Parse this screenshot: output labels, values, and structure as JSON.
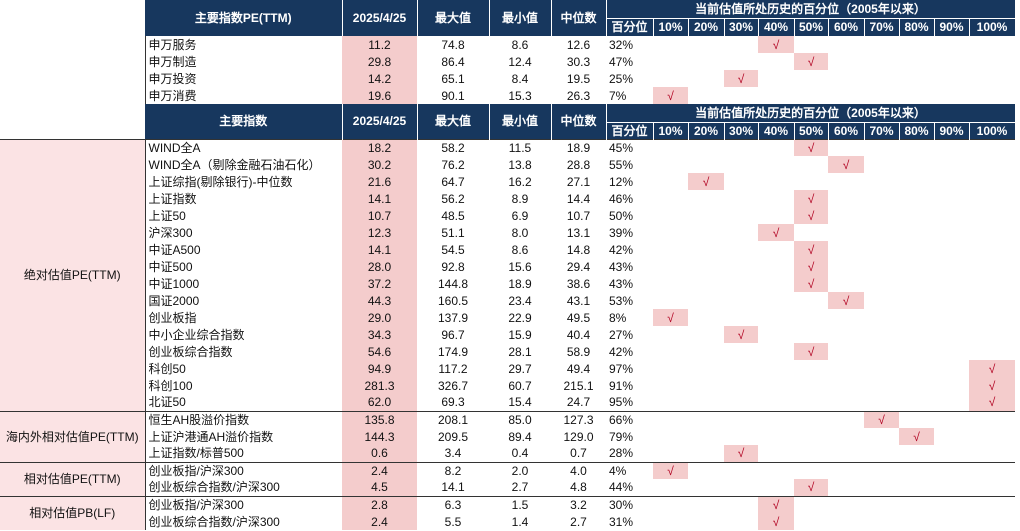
{
  "table1": {
    "header": {
      "title": "主要指数PE(TTM)",
      "date": "2025/4/25",
      "max": "最大值",
      "min": "最小值",
      "median": "中位数",
      "history_title": "当前估值所处历史的百分位（2005年以来）",
      "pct_label": "百分位",
      "bins": [
        "10%",
        "20%",
        "30%",
        "40%",
        "50%",
        "60%",
        "70%",
        "80%",
        "90%",
        "100%"
      ]
    },
    "rows": [
      {
        "name": "申万服务",
        "cur": "11.2",
        "max": "74.8",
        "min": "8.6",
        "median": "12.6",
        "pct": "32%",
        "bin": 3
      },
      {
        "name": "申万制造",
        "cur": "29.8",
        "max": "86.4",
        "min": "12.4",
        "median": "30.3",
        "pct": "47%",
        "bin": 4
      },
      {
        "name": "申万投资",
        "cur": "14.2",
        "max": "65.1",
        "min": "8.4",
        "median": "19.5",
        "pct": "25%",
        "bin": 2
      },
      {
        "name": "申万消费",
        "cur": "19.6",
        "max": "90.1",
        "min": "15.3",
        "median": "26.3",
        "pct": "7%",
        "bin": 0
      }
    ]
  },
  "table2": {
    "header": {
      "title": "主要指数",
      "date": "2025/4/25",
      "max": "最大值",
      "min": "最小值",
      "median": "中位数",
      "history_title": "当前估值所处历史的百分位（2005年以来）",
      "pct_label": "百分位",
      "bins": [
        "10%",
        "20%",
        "30%",
        "40%",
        "50%",
        "60%",
        "70%",
        "80%",
        "90%",
        "100%"
      ]
    },
    "check": "√",
    "groups": [
      {
        "label": "绝对估值PE(TTM)",
        "rows": [
          {
            "name": "WIND全A",
            "cur": "18.2",
            "max": "58.2",
            "min": "11.5",
            "median": "18.9",
            "pct": "45%",
            "bin": 4
          },
          {
            "name": "WIND全A（剔除金融石油石化）",
            "cur": "30.2",
            "max": "76.2",
            "min": "13.8",
            "median": "28.8",
            "pct": "55%",
            "bin": 5
          },
          {
            "name": "上证综指(剔除银行)-中位数",
            "cur": "21.6",
            "max": "64.7",
            "min": "16.2",
            "median": "27.1",
            "pct": "12%",
            "bin": 1
          },
          {
            "name": "上证指数",
            "cur": "14.1",
            "max": "56.2",
            "min": "8.9",
            "median": "14.4",
            "pct": "46%",
            "bin": 4
          },
          {
            "name": "上证50",
            "cur": "10.7",
            "max": "48.5",
            "min": "6.9",
            "median": "10.7",
            "pct": "50%",
            "bin": 4
          },
          {
            "name": "沪深300",
            "cur": "12.3",
            "max": "51.1",
            "min": "8.0",
            "median": "13.1",
            "pct": "39%",
            "bin": 3
          },
          {
            "name": "中证A500",
            "cur": "14.1",
            "max": "54.5",
            "min": "8.6",
            "median": "14.8",
            "pct": "42%",
            "bin": 4
          },
          {
            "name": "中证500",
            "cur": "28.0",
            "max": "92.8",
            "min": "15.6",
            "median": "29.4",
            "pct": "43%",
            "bin": 4
          },
          {
            "name": "中证1000",
            "cur": "37.2",
            "max": "144.8",
            "min": "18.9",
            "median": "38.6",
            "pct": "43%",
            "bin": 4
          },
          {
            "name": "国证2000",
            "cur": "44.3",
            "max": "160.5",
            "min": "23.4",
            "median": "43.1",
            "pct": "53%",
            "bin": 5
          },
          {
            "name": "创业板指",
            "cur": "29.0",
            "max": "137.9",
            "min": "22.9",
            "median": "49.5",
            "pct": "8%",
            "bin": 0
          },
          {
            "name": "中小企业综合指数",
            "cur": "34.3",
            "max": "96.7",
            "min": "15.9",
            "median": "40.4",
            "pct": "27%",
            "bin": 2
          },
          {
            "name": "创业板综合指数",
            "cur": "54.6",
            "max": "174.9",
            "min": "28.1",
            "median": "58.9",
            "pct": "42%",
            "bin": 4
          },
          {
            "name": "科创50",
            "cur": "94.9",
            "max": "117.2",
            "min": "29.7",
            "median": "49.4",
            "pct": "97%",
            "bin": 9
          },
          {
            "name": "科创100",
            "cur": "281.3",
            "max": "326.7",
            "min": "60.7",
            "median": "215.1",
            "pct": "91%",
            "bin": 9
          },
          {
            "name": "北证50",
            "cur": "62.0",
            "max": "69.3",
            "min": "15.4",
            "median": "24.7",
            "pct": "95%",
            "bin": 9
          }
        ]
      },
      {
        "label": "海内外相对估值PE(TTM)",
        "rows": [
          {
            "name": "恒生AH股溢价指数",
            "cur": "135.8",
            "max": "208.1",
            "min": "85.0",
            "median": "127.3",
            "pct": "66%",
            "bin": 6
          },
          {
            "name": "上证沪港通AH溢价指数",
            "cur": "144.3",
            "max": "209.5",
            "min": "89.4",
            "median": "129.0",
            "pct": "79%",
            "bin": 7
          },
          {
            "name": "上证指数/标普500",
            "cur": "0.6",
            "max": "3.4",
            "min": "0.4",
            "median": "0.7",
            "pct": "28%",
            "bin": 2
          }
        ]
      },
      {
        "label": "相对估值PE(TTM)",
        "rows": [
          {
            "name": "创业板指/沪深300",
            "cur": "2.4",
            "max": "8.2",
            "min": "2.0",
            "median": "4.0",
            "pct": "4%",
            "bin": 0
          },
          {
            "name": "创业板综合指数/沪深300",
            "cur": "4.5",
            "max": "14.1",
            "min": "2.7",
            "median": "4.8",
            "pct": "44%",
            "bin": 4
          }
        ]
      },
      {
        "label": "相对估值PB(LF)",
        "rows": [
          {
            "name": "创业板指/沪深300",
            "cur": "2.8",
            "max": "6.3",
            "min": "1.5",
            "median": "3.2",
            "pct": "30%",
            "bin": 3
          },
          {
            "name": "创业板综合指数/沪深300",
            "cur": "2.4",
            "max": "5.5",
            "min": "1.4",
            "median": "2.7",
            "pct": "31%",
            "bin": 3
          }
        ]
      }
    ]
  }
}
